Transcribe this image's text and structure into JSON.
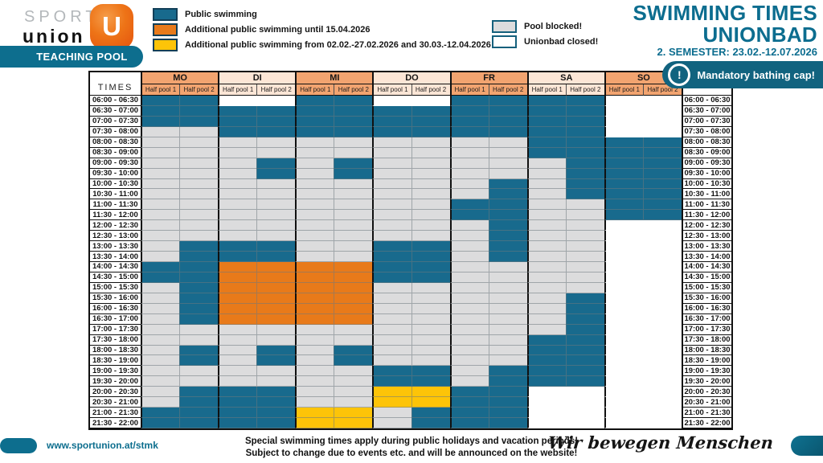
{
  "logo": {
    "sport": "SPORT",
    "union": "union",
    "u_glyph": "U",
    "pool_badge": "TEACHING POOL"
  },
  "title": {
    "line1": "SWIMMING TIMES",
    "line2": "UNIONBAD",
    "semester": "2. SEMESTER: 23.02.-12.07.2026"
  },
  "bathing_cap": {
    "icon": "exclamation-circle-icon",
    "icon_glyph": "!",
    "label": "Mandatory bathing cap!"
  },
  "legend_left": [
    {
      "key": "T",
      "label": "Public swimming"
    },
    {
      "key": "O",
      "label": "Additional public swimming until 15.04.2026"
    },
    {
      "key": "Y",
      "label": "Additional public swimming from 02.02.-27.02.2026 and 30.03.-12.04.2026"
    }
  ],
  "legend_right": [
    {
      "key": "G",
      "label": "Pool blocked!"
    },
    {
      "key": "W",
      "label": "Unionbad closed!"
    }
  ],
  "colors": {
    "brand_teal": "#0d6e8e",
    "cell_public_swimming": "#186a8d",
    "cell_additional_until": "#e87a1a",
    "cell_additional_from": "#fdc408",
    "cell_pool_blocked": "#dcdcdd",
    "cell_unionbad_closed": "#ffffff",
    "header_day_dark": "#f2a470",
    "header_day_light": "#fce6d6",
    "logo_orange": "#ee7417"
  },
  "table": {
    "times_header": "TIMES",
    "subheader": [
      "Half pool 1",
      "Half pool 2"
    ],
    "legend_codes": {
      "T": "public swimming",
      "O": "additional until 15.04.2026",
      "Y": "additional 02.02.-27.02.2026 and 30.03.-12.04.2026",
      "G": "pool blocked",
      "W": "unionbad closed"
    },
    "times": [
      "06:00 - 06:30",
      "06:30 - 07:00",
      "07:00 - 07:30",
      "07:30 - 08:00",
      "08:00 - 08:30",
      "08:30 - 09:00",
      "09:00 - 09:30",
      "09:30 - 10:00",
      "10:00 - 10:30",
      "10:30 - 11:00",
      "11:00 - 11:30",
      "11:30 - 12:00",
      "12:00 - 12:30",
      "12:30 - 13:00",
      "13:00 - 13:30",
      "13:30 - 14:00",
      "14:00 - 14:30",
      "14:30 - 15:00",
      "15:00 - 15:30",
      "15:30 - 16:00",
      "16:00 - 16:30",
      "16:30 - 17:00",
      "17:00 - 17:30",
      "17:30 - 18:00",
      "18:00 - 18:30",
      "18:30 - 19:00",
      "19:00 - 19:30",
      "19:30 - 20:00",
      "20:00 - 20:30",
      "20:30 - 21:00",
      "21:00 - 21:30",
      "21:30 - 22:00"
    ],
    "days": [
      {
        "label": "MO",
        "shade": "dark",
        "pool1": "TTTGGGGGGGGGGGGGTTGGGGGGGGGGGGTT",
        "pool2": "TTTGGGGGGGGGGGTTTTTTTTGGTTGGTTTT"
      },
      {
        "label": "DI",
        "shade": "light",
        "pool1": "WTTTGGGGGGGGGGTTOOOOOOGGGGGGTTTT",
        "pool2": "WTTTGGTTGGGGGGTTOOOOOOGGTTGGTTTT"
      },
      {
        "label": "MI",
        "shade": "dark",
        "pool1": "TTTTGGGGGGGGGGGGOOOOOOGGGGGGGGYY",
        "pool2": "TTTTGGTTGGGGGGGGOOOOOOGGTTGGGGYY"
      },
      {
        "label": "DO",
        "shade": "light",
        "pool1": "WTTTGGGGGGGGGGTTTTGGGGGGGGTTYYGG",
        "pool2": "WTTTGGGGGGGGGGTTTTGGGGGGGGTTYYTT"
      },
      {
        "label": "FR",
        "shade": "dark",
        "pool1": "TTTTGGGGGGTTGGGGGGGGGGGGGGGGTTTT",
        "pool2": "TTTTGGGGTTTTTTTTGGGGGGGGGGTTTTTT"
      },
      {
        "label": "SA",
        "shade": "light",
        "pool1": "TTTTTTGGGGGGGGGGGGGGGGGTTTTTWWWW",
        "pool2": "TTTTTTTTTTGGGGGGGGGTTTTTTTTTWWWW"
      },
      {
        "label": "SO",
        "shade": "dark",
        "pool1": "WWWWTTTTTTTTWWWWWWWWWWWWWWWWWWWW",
        "pool2": "WWWWTTTTTTTTWWWWWWWWWWWWWWWWWWWW"
      }
    ]
  },
  "footer": {
    "url": "www.sportunion.at/stmk",
    "note1": "Special swimming times apply during public holidays and vacation periods!",
    "note2": "Subject to change due to events etc. and will be announced on the website!",
    "slogan": "Wir bewegen Menschen"
  }
}
